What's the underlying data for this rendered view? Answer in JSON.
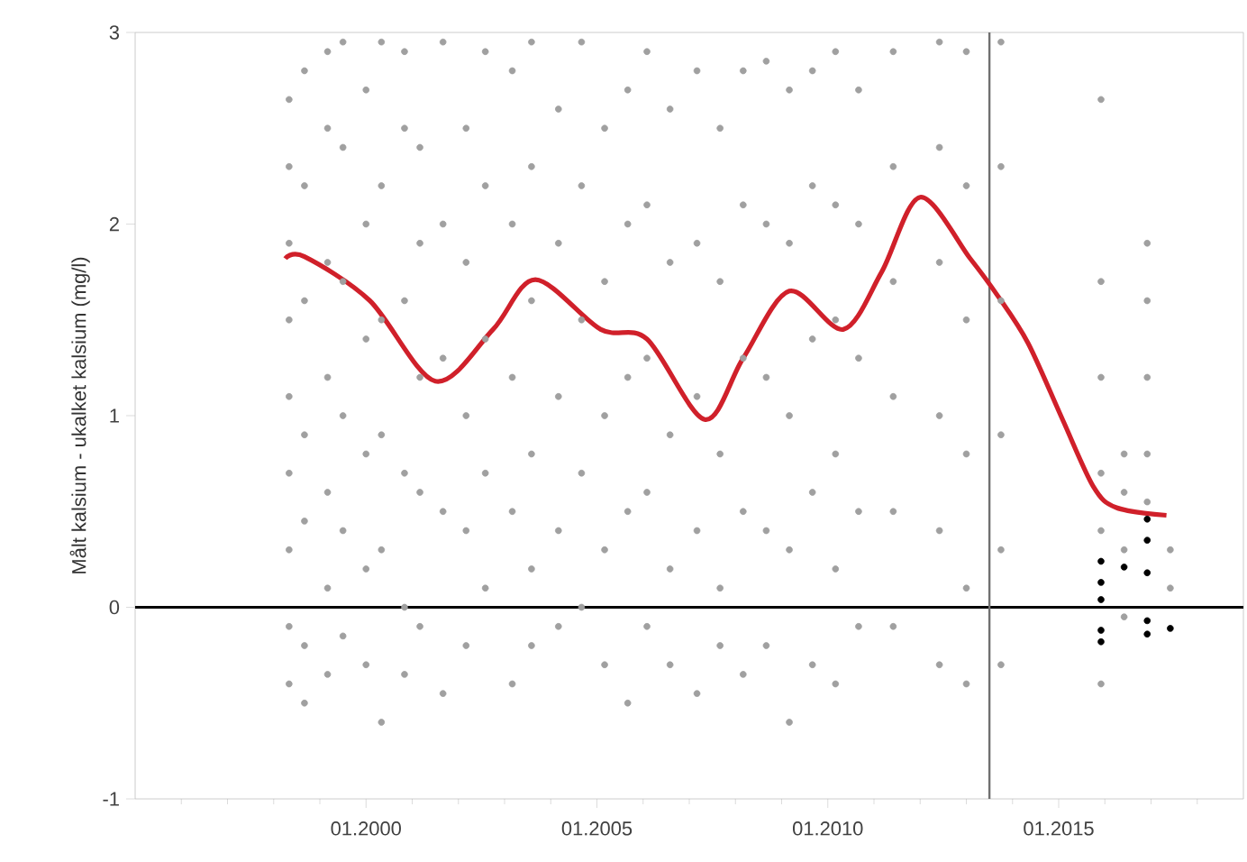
{
  "chart_data": {
    "type": "scatter",
    "ylabel": "Målt kalsium - ukalket kalsium (mg/l)",
    "xlim": [
      "1995-01",
      "2019-01"
    ],
    "ylim": [
      -1,
      3
    ],
    "xticks": [
      {
        "value": "1996-01",
        "label": null
      },
      {
        "value": "1997-01",
        "label": null
      },
      {
        "value": "1998-01",
        "label": null
      },
      {
        "value": "1999-01",
        "label": null
      },
      {
        "value": "2000-01",
        "label": "01.2000"
      },
      {
        "value": "2001-01",
        "label": null
      },
      {
        "value": "2002-01",
        "label": null
      },
      {
        "value": "2003-01",
        "label": null
      },
      {
        "value": "2004-01",
        "label": null
      },
      {
        "value": "2005-01",
        "label": "01.2005"
      },
      {
        "value": "2006-01",
        "label": null
      },
      {
        "value": "2007-01",
        "label": null
      },
      {
        "value": "2008-01",
        "label": null
      },
      {
        "value": "2009-01",
        "label": null
      },
      {
        "value": "2010-01",
        "label": "01.2010"
      },
      {
        "value": "2011-01",
        "label": null
      },
      {
        "value": "2012-01",
        "label": null
      },
      {
        "value": "2013-01",
        "label": null
      },
      {
        "value": "2014-01",
        "label": null
      },
      {
        "value": "2015-01",
        "label": "01.2015"
      },
      {
        "value": "2016-01",
        "label": null
      },
      {
        "value": "2017-01",
        "label": null
      },
      {
        "value": "2018-01",
        "label": null
      }
    ],
    "yticks": [
      -1,
      0,
      1,
      2,
      3
    ],
    "ref_lines": [
      {
        "axis": "y",
        "value": 0,
        "color": "#000000"
      },
      {
        "axis": "x",
        "value": "2013-07",
        "color": "#707070"
      }
    ],
    "series": [
      {
        "color": "#a0a0a0",
        "marker": "circle",
        "x": [
          "1998-05",
          "1998-05",
          "1998-05",
          "1998-05",
          "1998-05",
          "1998-05",
          "1998-05",
          "1998-05",
          "1998-05",
          "1998-09",
          "1998-09",
          "1998-09",
          "1998-09",
          "1998-09",
          "1998-09",
          "1998-09",
          "1999-03",
          "1999-03",
          "1999-03",
          "1999-03",
          "1999-03",
          "1999-03",
          "1999-03",
          "1999-07",
          "1999-07",
          "1999-07",
          "1999-07",
          "1999-07",
          "1999-07",
          "2000-01",
          "2000-01",
          "2000-01",
          "2000-01",
          "2000-01",
          "2000-01",
          "2000-05",
          "2000-05",
          "2000-05",
          "2000-05",
          "2000-05",
          "2000-05",
          "2000-11",
          "2000-11",
          "2000-11",
          "2000-11",
          "2000-11",
          "2000-11",
          "2001-03",
          "2001-03",
          "2001-03",
          "2001-03",
          "2001-03",
          "2001-09",
          "2001-09",
          "2001-09",
          "2001-09",
          "2001-09",
          "2002-03",
          "2002-03",
          "2002-03",
          "2002-03",
          "2002-03",
          "2002-08",
          "2002-08",
          "2002-08",
          "2002-08",
          "2002-08",
          "2003-03",
          "2003-03",
          "2003-03",
          "2003-03",
          "2003-03",
          "2003-08",
          "2003-08",
          "2003-08",
          "2003-08",
          "2003-08",
          "2003-08",
          "2004-03",
          "2004-03",
          "2004-03",
          "2004-03",
          "2004-03",
          "2004-09",
          "2004-09",
          "2004-09",
          "2004-09",
          "2004-09",
          "2005-03",
          "2005-03",
          "2005-03",
          "2005-03",
          "2005-03",
          "2005-09",
          "2005-09",
          "2005-09",
          "2005-09",
          "2005-09",
          "2006-02",
          "2006-02",
          "2006-02",
          "2006-02",
          "2006-02",
          "2006-08",
          "2006-08",
          "2006-08",
          "2006-08",
          "2006-08",
          "2007-03",
          "2007-03",
          "2007-03",
          "2007-03",
          "2007-03",
          "2007-09",
          "2007-09",
          "2007-09",
          "2007-09",
          "2007-09",
          "2008-03",
          "2008-03",
          "2008-03",
          "2008-03",
          "2008-03",
          "2008-09",
          "2008-09",
          "2008-09",
          "2008-09",
          "2008-09",
          "2009-03",
          "2009-03",
          "2009-03",
          "2009-03",
          "2009-03",
          "2009-09",
          "2009-09",
          "2009-09",
          "2009-09",
          "2009-09",
          "2010-03",
          "2010-03",
          "2010-03",
          "2010-03",
          "2010-03",
          "2010-03",
          "2010-09",
          "2010-09",
          "2010-09",
          "2010-09",
          "2010-09",
          "2011-06",
          "2011-06",
          "2011-06",
          "2011-06",
          "2011-06",
          "2011-06",
          "2012-06",
          "2012-06",
          "2012-06",
          "2012-06",
          "2012-06",
          "2012-06",
          "2013-01",
          "2013-01",
          "2013-01",
          "2013-01",
          "2013-01",
          "2013-01",
          "2013-10",
          "2013-10",
          "2013-10",
          "2013-10",
          "2013-10",
          "2013-10",
          "2015-12",
          "2015-12",
          "2015-12",
          "2015-12",
          "2015-12",
          "2015-12",
          "2016-06",
          "2016-06",
          "2016-06",
          "2016-06",
          "2016-12",
          "2016-12",
          "2016-12",
          "2016-12",
          "2016-12",
          "2017-06",
          "2017-06"
        ],
        "values": [
          2.65,
          2.3,
          1.9,
          1.5,
          1.1,
          0.7,
          0.3,
          -0.1,
          -0.4,
          2.8,
          2.2,
          1.6,
          0.9,
          0.45,
          -0.2,
          -0.5,
          2.9,
          2.5,
          1.8,
          1.2,
          0.6,
          0.1,
          -0.35,
          2.95,
          2.4,
          1.7,
          1.0,
          0.4,
          -0.15,
          2.7,
          2.0,
          1.4,
          0.8,
          0.2,
          -0.3,
          2.95,
          2.2,
          1.5,
          0.9,
          0.3,
          -0.6,
          2.9,
          2.5,
          1.6,
          0.7,
          0.0,
          -0.35,
          2.4,
          1.9,
          1.2,
          0.6,
          -0.1,
          2.95,
          2.0,
          1.3,
          0.5,
          -0.45,
          2.5,
          1.8,
          1.0,
          0.4,
          -0.2,
          2.9,
          2.2,
          1.4,
          0.7,
          0.1,
          2.8,
          2.0,
          1.2,
          0.5,
          -0.4,
          2.95,
          2.3,
          1.6,
          0.8,
          0.2,
          -0.2,
          2.6,
          1.9,
          1.1,
          0.4,
          -0.1,
          2.95,
          2.2,
          1.5,
          0.7,
          0.0,
          2.5,
          1.7,
          1.0,
          0.3,
          -0.3,
          2.7,
          2.0,
          1.2,
          0.5,
          -0.5,
          2.9,
          2.1,
          1.3,
          0.6,
          -0.1,
          2.6,
          1.8,
          0.9,
          0.2,
          -0.3,
          2.8,
          1.9,
          1.1,
          0.4,
          -0.45,
          2.5,
          1.7,
          0.8,
          0.1,
          -0.2,
          2.8,
          2.1,
          1.3,
          0.5,
          -0.35,
          2.85,
          2.0,
          1.2,
          0.4,
          -0.2,
          2.7,
          1.9,
          1.0,
          0.3,
          -0.6,
          2.8,
          2.2,
          1.4,
          0.6,
          -0.3,
          2.9,
          2.1,
          1.5,
          0.8,
          0.2,
          -0.4,
          2.7,
          2.0,
          1.3,
          0.5,
          -0.1,
          2.9,
          2.3,
          1.7,
          1.1,
          0.5,
          -0.1,
          2.95,
          2.4,
          1.8,
          1.0,
          0.4,
          -0.3,
          2.9,
          2.2,
          1.5,
          0.8,
          0.1,
          -0.4,
          2.95,
          2.3,
          1.6,
          0.9,
          0.3,
          -0.3,
          2.65,
          1.7,
          1.2,
          0.7,
          0.4,
          -0.4,
          0.8,
          0.6,
          0.3,
          -0.05,
          1.9,
          1.6,
          1.2,
          0.8,
          0.55,
          0.3,
          0.1
        ]
      },
      {
        "color": "#000000",
        "marker": "circle",
        "x": [
          "2015-12",
          "2015-12",
          "2015-12",
          "2015-12",
          "2015-12",
          "2016-06",
          "2016-12",
          "2016-12",
          "2016-12",
          "2016-12",
          "2016-12",
          "2017-06"
        ],
        "values": [
          0.24,
          0.13,
          0.04,
          -0.12,
          -0.18,
          0.21,
          0.46,
          0.35,
          0.18,
          -0.07,
          -0.14,
          -0.11
        ]
      },
      {
        "type": "line",
        "marker": "none",
        "color": "#d0202a",
        "x": [
          "1998-04",
          "1998-09",
          "2000-02",
          "2001-07",
          "2002-10",
          "2003-09",
          "2005-02",
          "2006-02",
          "2007-05",
          "2008-03",
          "2009-03",
          "2010-05",
          "2011-03",
          "2012-01",
          "2013-02",
          "2013-09",
          "2014-05",
          "2015-02",
          "2015-10",
          "2016-04",
          "2017-05"
        ],
        "values": [
          1.82,
          1.83,
          1.6,
          1.18,
          1.45,
          1.71,
          1.45,
          1.4,
          0.98,
          1.3,
          1.65,
          1.45,
          1.75,
          2.14,
          1.82,
          1.63,
          1.38,
          0.98,
          0.63,
          0.52,
          0.48
        ]
      }
    ]
  }
}
